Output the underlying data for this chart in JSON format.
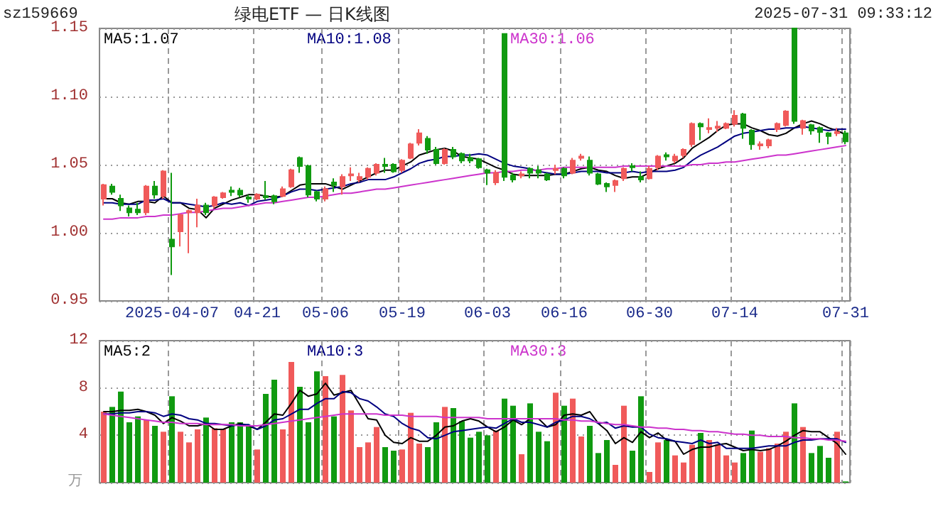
{
  "chart_data": [
    {
      "type": "candlestick",
      "title": "绿电ETF — 日K线图",
      "subtitle": "sz159669",
      "annotations": [
        "2025-07-31 09:33:12"
      ],
      "legend": "top",
      "grid": true,
      "categories": [
        null,
        null,
        null,
        null,
        null,
        null,
        null,
        null,
        "2025-04-07",
        null,
        null,
        null,
        null,
        null,
        null,
        null,
        null,
        null,
        "04-21",
        null,
        null,
        null,
        null,
        null,
        null,
        null,
        "05-06",
        null,
        null,
        null,
        null,
        null,
        null,
        null,
        null,
        "05-19",
        null,
        null,
        null,
        null,
        null,
        null,
        null,
        null,
        null,
        "06-03",
        null,
        null,
        null,
        null,
        null,
        null,
        null,
        null,
        "06-16",
        null,
        null,
        null,
        null,
        null,
        null,
        null,
        null,
        null,
        "06-30",
        null,
        null,
        null,
        null,
        null,
        null,
        null,
        null,
        null,
        "07-14",
        null,
        null,
        null,
        null,
        null,
        null,
        null,
        null,
        null,
        null,
        null,
        null,
        "07-31"
      ],
      "ohlc": [
        [
          1.025,
          1.036,
          1.02,
          1.035
        ],
        [
          1.034,
          1.036,
          1.028,
          1.03
        ],
        [
          1.025,
          1.028,
          1.016,
          1.02
        ],
        [
          1.018,
          1.02,
          1.012,
          1.015
        ],
        [
          1.017,
          1.022,
          1.013,
          1.015
        ],
        [
          1.015,
          1.035,
          1.013,
          1.034
        ],
        [
          1.034,
          1.038,
          1.025,
          1.028
        ],
        [
          1.027,
          1.046,
          1.025,
          1.045
        ],
        [
          0.995,
          1.044,
          0.969,
          0.99
        ],
        [
          1.001,
          1.014,
          0.99,
          1.013
        ],
        [
          1.015,
          1.017,
          0.985,
          1.016
        ],
        [
          1.015,
          1.025,
          1.004,
          1.02
        ],
        [
          1.02,
          1.022,
          1.013,
          1.015
        ],
        [
          1.02,
          1.027,
          1.018,
          1.026
        ],
        [
          1.026,
          1.03,
          1.025,
          1.029
        ],
        [
          1.031,
          1.034,
          1.027,
          1.03
        ],
        [
          1.031,
          1.033,
          1.026,
          1.028
        ],
        [
          1.026,
          1.028,
          1.022,
          1.025
        ],
        [
          1.025,
          1.029,
          1.024,
          1.028
        ],
        [
          1.027,
          1.038,
          1.024,
          1.026
        ],
        [
          1.027,
          1.028,
          1.021,
          1.023
        ],
        [
          1.027,
          1.034,
          1.026,
          1.032
        ],
        [
          1.034,
          1.047,
          1.033,
          1.046
        ],
        [
          1.055,
          1.056,
          1.044,
          1.049
        ],
        [
          1.049,
          1.05,
          1.026,
          1.028
        ],
        [
          1.03,
          1.031,
          1.023,
          1.025
        ],
        [
          1.025,
          1.034,
          1.023,
          1.032
        ],
        [
          1.037,
          1.04,
          1.03,
          1.035
        ],
        [
          1.034,
          1.043,
          1.028,
          1.041
        ],
        [
          1.042,
          1.048,
          1.038,
          1.043
        ],
        [
          1.039,
          1.044,
          1.037,
          1.041
        ],
        [
          1.041,
          1.048,
          1.039,
          1.047
        ],
        [
          1.044,
          1.051,
          1.042,
          1.05
        ],
        [
          1.05,
          1.055,
          1.044,
          1.049
        ],
        [
          1.05,
          1.051,
          1.044,
          1.045
        ],
        [
          1.046,
          1.054,
          1.044,
          1.053
        ],
        [
          1.055,
          1.066,
          1.054,
          1.065
        ],
        [
          1.066,
          1.076,
          1.064,
          1.073
        ],
        [
          1.069,
          1.071,
          1.058,
          1.061
        ],
        [
          1.061,
          1.063,
          1.05,
          1.051
        ],
        [
          1.051,
          1.062,
          1.05,
          1.061
        ],
        [
          1.061,
          1.063,
          1.054,
          1.056
        ],
        [
          1.058,
          1.059,
          1.051,
          1.053
        ],
        [
          1.055,
          1.058,
          1.051,
          1.053
        ],
        [
          1.054,
          1.055,
          1.047,
          1.048
        ],
        [
          1.046,
          1.047,
          1.035,
          1.044
        ],
        [
          1.037,
          1.046,
          1.035,
          1.044
        ],
        [
          1.146,
          1.146,
          1.038,
          1.041
        ],
        [
          1.042,
          1.044,
          1.037,
          1.039
        ],
        [
          1.042,
          1.045,
          1.04,
          1.043
        ],
        [
          1.047,
          1.048,
          1.04,
          1.044
        ],
        [
          1.046,
          1.049,
          1.04,
          1.044
        ],
        [
          1.043,
          1.044,
          1.038,
          1.039
        ],
        [
          1.046,
          1.05,
          1.043,
          1.047
        ],
        [
          1.047,
          1.048,
          1.04,
          1.042
        ],
        [
          1.044,
          1.055,
          1.043,
          1.053
        ],
        [
          1.055,
          1.058,
          1.053,
          1.056
        ],
        [
          1.053,
          1.056,
          1.042,
          1.044
        ],
        [
          1.043,
          1.044,
          1.035,
          1.036
        ],
        [
          1.036,
          1.037,
          1.03,
          1.034
        ],
        [
          1.035,
          1.039,
          1.03,
          1.038
        ],
        [
          1.04,
          1.048,
          1.038,
          1.047
        ],
        [
          1.049,
          1.051,
          1.045,
          1.048
        ],
        [
          1.041,
          1.045,
          1.037,
          1.039
        ],
        [
          1.04,
          1.049,
          1.039,
          1.047
        ],
        [
          1.048,
          1.057,
          1.046,
          1.056
        ],
        [
          1.057,
          1.059,
          1.053,
          1.056
        ],
        [
          1.053,
          1.058,
          1.051,
          1.056
        ],
        [
          1.057,
          1.062,
          1.055,
          1.061
        ],
        [
          1.065,
          1.081,
          1.063,
          1.08
        ],
        [
          1.08,
          1.081,
          1.068,
          1.078
        ],
        [
          1.076,
          1.084,
          1.073,
          1.077
        ],
        [
          1.077,
          1.082,
          1.074,
          1.078
        ],
        [
          1.077,
          1.081,
          1.076,
          1.08
        ],
        [
          1.08,
          1.09,
          1.078,
          1.086
        ],
        [
          1.087,
          1.088,
          1.069,
          1.077
        ],
        [
          1.075,
          1.076,
          1.061,
          1.065
        ],
        [
          1.064,
          1.067,
          1.061,
          1.065
        ],
        [
          1.064,
          1.069,
          1.062,
          1.068
        ],
        [
          1.076,
          1.081,
          1.074,
          1.08
        ],
        [
          1.079,
          1.09,
          1.078,
          1.089
        ],
        [
          1.15,
          1.15,
          1.08,
          1.082
        ],
        [
          1.077,
          1.083,
          1.072,
          1.082
        ],
        [
          1.079,
          1.08,
          1.072,
          1.075
        ],
        [
          1.077,
          1.078,
          1.066,
          1.074
        ],
        [
          1.073,
          1.074,
          1.065,
          1.071
        ],
        [
          1.073,
          1.077,
          1.071,
          1.074
        ],
        [
          1.073,
          1.075,
          1.065,
          1.067
        ]
      ],
      "colors": [
        "#f05a5a",
        "#109a10",
        "#109a10",
        "#109a10",
        "#109a10",
        "#f05a5a",
        "#109a10",
        "#f05a5a",
        "#109a10",
        "#f05a5a",
        "#f05a5a",
        "#f05a5a",
        "#109a10",
        "#f05a5a",
        "#f05a5a",
        "#109a10",
        "#109a10",
        "#109a10",
        "#f05a5a",
        "#109a10",
        "#109a10",
        "#f05a5a",
        "#f05a5a",
        "#109a10",
        "#109a10",
        "#109a10",
        "#f05a5a",
        "#109a10",
        "#f05a5a",
        "#f05a5a",
        "#f05a5a",
        "#f05a5a",
        "#f05a5a",
        "#109a10",
        "#109a10",
        "#f05a5a",
        "#f05a5a",
        "#f05a5a",
        "#109a10",
        "#109a10",
        "#f05a5a",
        "#109a10",
        "#109a10",
        "#109a10",
        "#109a10",
        "#109a10",
        "#f05a5a",
        "#109a10",
        "#109a10",
        "#f05a5a",
        "#109a10",
        "#109a10",
        "#109a10",
        "#f05a5a",
        "#109a10",
        "#f05a5a",
        "#f05a5a",
        "#109a10",
        "#109a10",
        "#109a10",
        "#f05a5a",
        "#f05a5a",
        "#109a10",
        "#109a10",
        "#f05a5a",
        "#f05a5a",
        "#109a10",
        "#f05a5a",
        "#f05a5a",
        "#f05a5a",
        "#109a10",
        "#f05a5a",
        "#f05a5a",
        "#f05a5a",
        "#f05a5a",
        "#109a10",
        "#109a10",
        "#f05a5a",
        "#f05a5a",
        "#f05a5a",
        "#f05a5a",
        "#109a10",
        "#f05a5a",
        "#109a10",
        "#109a10",
        "#109a10",
        "#f05a5a",
        "#109a10"
      ],
      "series": [
        {
          "type": "line",
          "name": "MA5:1.07",
          "color": "#000000",
          "values": [
            1.025,
            1.025,
            1.022,
            1.021,
            1.023,
            1.023,
            1.022,
            1.027,
            1.022,
            1.022,
            1.018,
            1.017,
            1.011,
            1.018,
            1.021,
            1.024,
            1.026,
            1.028,
            1.028,
            1.027,
            1.026,
            1.027,
            1.031,
            1.035,
            1.036,
            1.036,
            1.036,
            1.034,
            1.032,
            1.035,
            1.038,
            1.041,
            1.044,
            1.046,
            1.046,
            1.049,
            1.052,
            1.057,
            1.059,
            1.061,
            1.062,
            1.06,
            1.056,
            1.055,
            1.054,
            1.051,
            1.048,
            1.046,
            1.043,
            1.042,
            1.042,
            1.042,
            1.042,
            1.043,
            1.043,
            1.045,
            1.047,
            1.048,
            1.046,
            1.045,
            1.042,
            1.04,
            1.041,
            1.041,
            1.044,
            1.047,
            1.049,
            1.051,
            1.055,
            1.062,
            1.066,
            1.07,
            1.075,
            1.079,
            1.08,
            1.08,
            1.077,
            1.075,
            1.072,
            1.071,
            1.073,
            1.077,
            1.08,
            1.082,
            1.08,
            1.077,
            1.075,
            1.072
          ]
        },
        {
          "type": "line",
          "name": "MA10:1.08",
          "color": "#000080",
          "values": [
            1.022,
            1.022,
            1.021,
            1.021,
            1.021,
            1.024,
            1.024,
            1.025,
            1.022,
            1.022,
            1.021,
            1.02,
            1.019,
            1.02,
            1.022,
            1.021,
            1.022,
            1.02,
            1.023,
            1.024,
            1.025,
            1.027,
            1.03,
            1.032,
            1.032,
            1.031,
            1.032,
            1.033,
            1.034,
            1.036,
            1.037,
            1.039,
            1.039,
            1.039,
            1.041,
            1.044,
            1.047,
            1.051,
            1.053,
            1.054,
            1.056,
            1.056,
            1.057,
            1.057,
            1.058,
            1.057,
            1.054,
            1.051,
            1.049,
            1.048,
            1.047,
            1.045,
            1.044,
            1.043,
            1.043,
            1.044,
            1.045,
            1.045,
            1.045,
            1.044,
            1.044,
            1.044,
            1.045,
            1.044,
            1.045,
            1.045,
            1.045,
            1.046,
            1.048,
            1.053,
            1.057,
            1.06,
            1.063,
            1.067,
            1.071,
            1.073,
            1.074,
            1.075,
            1.076,
            1.076,
            1.077,
            1.077,
            1.078,
            1.077,
            1.076,
            1.075,
            1.076,
            1.076
          ]
        },
        {
          "type": "line",
          "name": "MA30:1.06",
          "color": "#cc33cc",
          "values": [
            1.01,
            1.01,
            1.011,
            1.011,
            1.011,
            1.012,
            1.012,
            1.013,
            1.013,
            1.014,
            1.015,
            1.015,
            1.016,
            1.017,
            1.018,
            1.018,
            1.019,
            1.02,
            1.021,
            1.022,
            1.022,
            1.023,
            1.024,
            1.025,
            1.026,
            1.026,
            1.027,
            1.028,
            1.029,
            1.029,
            1.03,
            1.031,
            1.032,
            1.032,
            1.033,
            1.034,
            1.035,
            1.036,
            1.037,
            1.038,
            1.039,
            1.04,
            1.041,
            1.042,
            1.043,
            1.044,
            1.044,
            1.045,
            1.045,
            1.046,
            1.046,
            1.046,
            1.047,
            1.047,
            1.048,
            1.048,
            1.048,
            1.048,
            1.048,
            1.048,
            1.048,
            1.049,
            1.049,
            1.049,
            1.049,
            1.049,
            1.049,
            1.049,
            1.049,
            1.05,
            1.05,
            1.051,
            1.051,
            1.052,
            1.052,
            1.053,
            1.054,
            1.055,
            1.056,
            1.057,
            1.057,
            1.058,
            1.059,
            1.06,
            1.061,
            1.062,
            1.063,
            1.064
          ]
        }
      ],
      "ylim": [
        0.95,
        1.15
      ],
      "yticks": [
        0.95,
        {
          "value": 1.0,
          "label": "1.00"
        },
        1.05,
        {
          "value": 1.1,
          "label": "1.10"
        },
        1.15
      ]
    },
    {
      "type": "bar",
      "legend": "top",
      "grid": true,
      "tick_labels": "y",
      "ylabel": "万",
      "categories": [
        null,
        null,
        null,
        null,
        null,
        null,
        null,
        null,
        null,
        null,
        null,
        null,
        null,
        null,
        null,
        null,
        null,
        null,
        null,
        null,
        null,
        null,
        null,
        null,
        null,
        null,
        null,
        null,
        null,
        null,
        null,
        null,
        null,
        null,
        null,
        null,
        null,
        null,
        null,
        null,
        null,
        null,
        null,
        null,
        null,
        null,
        null,
        null,
        null,
        null,
        null,
        null,
        null,
        null,
        null,
        null,
        null,
        null,
        null,
        null,
        null,
        null,
        null,
        null,
        null,
        null,
        null,
        null,
        null,
        null,
        null,
        null,
        null,
        null,
        null,
        null,
        null,
        null,
        null,
        null,
        null,
        null,
        null,
        null,
        null,
        null,
        null,
        null
      ],
      "series": [
        {
          "type": "bar",
          "values": [
            6.0,
            6.4,
            7.7,
            5.1,
            5.6,
            5.3,
            4.8,
            4.3,
            7.3,
            4.3,
            3.4,
            4.5,
            5.5,
            4.6,
            4.5,
            5.1,
            5.1,
            4.8,
            2.8,
            7.5,
            8.7,
            4.5,
            10.2,
            8.1,
            5.1,
            9.4,
            9.0,
            5.6,
            9.1,
            6.1,
            3.0,
            3.4,
            4.7,
            3.0,
            2.7,
            2.8,
            5.9,
            3.3,
            3.0,
            5.1,
            6.4,
            6.3,
            5.2,
            3.8,
            4.3,
            4.0,
            4.4,
            7.1,
            6.5,
            2.4,
            6.7,
            4.3,
            3.5,
            7.6,
            6.5,
            7.1,
            3.9,
            4.8,
            2.5,
            3.6,
            1.5,
            6.5,
            2.7,
            7.3,
            0.9,
            3.4,
            3.6,
            2.3,
            1.7,
            3.2,
            4.2,
            3.6,
            3.2,
            2.3,
            1.7,
            2.5,
            4.4,
            2.6,
            2.9,
            3.3,
            4.3,
            6.7,
            4.7,
            2.5,
            3.1,
            2.1,
            4.3,
            0.1
          ],
          "colors": [
            "#f05a5a",
            "#109a10",
            "#109a10",
            "#109a10",
            "#109a10",
            "#f05a5a",
            "#109a10",
            "#f05a5a",
            "#109a10",
            "#f05a5a",
            "#f05a5a",
            "#f05a5a",
            "#109a10",
            "#f05a5a",
            "#f05a5a",
            "#109a10",
            "#109a10",
            "#109a10",
            "#f05a5a",
            "#109a10",
            "#109a10",
            "#f05a5a",
            "#f05a5a",
            "#109a10",
            "#109a10",
            "#109a10",
            "#f05a5a",
            "#109a10",
            "#f05a5a",
            "#f05a5a",
            "#f05a5a",
            "#f05a5a",
            "#f05a5a",
            "#109a10",
            "#109a10",
            "#f05a5a",
            "#f05a5a",
            "#f05a5a",
            "#109a10",
            "#109a10",
            "#f05a5a",
            "#109a10",
            "#109a10",
            "#109a10",
            "#109a10",
            "#109a10",
            "#f05a5a",
            "#109a10",
            "#109a10",
            "#f05a5a",
            "#109a10",
            "#109a10",
            "#109a10",
            "#f05a5a",
            "#109a10",
            "#f05a5a",
            "#f05a5a",
            "#109a10",
            "#109a10",
            "#109a10",
            "#f05a5a",
            "#f05a5a",
            "#109a10",
            "#109a10",
            "#f05a5a",
            "#f05a5a",
            "#109a10",
            "#f05a5a",
            "#f05a5a",
            "#f05a5a",
            "#109a10",
            "#f05a5a",
            "#f05a5a",
            "#f05a5a",
            "#f05a5a",
            "#109a10",
            "#109a10",
            "#f05a5a",
            "#f05a5a",
            "#f05a5a",
            "#f05a5a",
            "#109a10",
            "#f05a5a",
            "#109a10",
            "#109a10",
            "#109a10",
            "#f05a5a",
            "#109a10"
          ]
        },
        {
          "type": "line",
          "name": "MA5:2",
          "color": "#000000",
          "values": [
            6.0,
            6.0,
            6.1,
            6.1,
            6.2,
            6.0,
            5.7,
            5.0,
            5.5,
            5.2,
            4.8,
            4.8,
            5.0,
            4.5,
            4.5,
            4.8,
            5.0,
            4.8,
            4.5,
            5.1,
            5.8,
            5.7,
            6.7,
            7.8,
            7.3,
            7.5,
            8.4,
            7.4,
            7.6,
            7.8,
            6.6,
            5.4,
            5.3,
            4.0,
            3.4,
            3.3,
            3.8,
            3.5,
            3.5,
            4.0,
            4.7,
            4.8,
            5.2,
            5.4,
            5.2,
            4.7,
            4.3,
            4.7,
            5.3,
            4.9,
            5.4,
            5.4,
            4.7,
            4.9,
            5.7,
            5.8,
            5.7,
            6.0,
            5.0,
            4.4,
            3.3,
            3.8,
            3.4,
            4.3,
            3.8,
            4.2,
            3.6,
            3.5,
            2.4,
            2.8,
            3.0,
            3.0,
            3.2,
            3.3,
            3.0,
            2.7,
            2.8,
            2.7,
            2.8,
            3.1,
            3.5,
            4.0,
            4.4,
            4.3,
            4.3,
            3.8,
            3.3,
            2.4
          ]
        },
        {
          "type": "line",
          "name": "MA10:3",
          "color": "#000080",
          "values": [
            5.8,
            5.8,
            5.9,
            5.9,
            6.0,
            6.0,
            5.9,
            5.6,
            5.8,
            5.7,
            5.4,
            5.3,
            5.0,
            5.0,
            4.9,
            4.8,
            4.9,
            4.9,
            4.5,
            4.8,
            5.3,
            5.4,
            5.8,
            6.2,
            6.2,
            6.7,
            7.1,
            7.1,
            7.7,
            7.6,
            7.1,
            6.9,
            6.4,
            5.8,
            5.6,
            5.0,
            4.6,
            4.4,
            3.8,
            3.7,
            4.0,
            4.3,
            4.4,
            4.5,
            4.6,
            4.7,
            4.6,
            5.0,
            5.4,
            5.1,
            5.1,
            4.9,
            4.7,
            5.1,
            5.3,
            5.6,
            5.6,
            5.4,
            5.0,
            5.1,
            4.6,
            4.8,
            4.7,
            4.7,
            4.1,
            3.8,
            3.7,
            3.5,
            3.4,
            3.3,
            3.6,
            3.3,
            3.4,
            2.9,
            2.9,
            2.9,
            2.9,
            3.0,
            3.1,
            3.1,
            3.1,
            3.4,
            3.6,
            3.6,
            3.7,
            3.7,
            3.7,
            3.4
          ]
        },
        {
          "type": "line",
          "name": "MA30:3",
          "color": "#cc33cc",
          "values": [
            5.8,
            5.7,
            5.6,
            5.5,
            5.4,
            5.3,
            5.2,
            5.1,
            5.1,
            5.0,
            5.0,
            5.0,
            4.9,
            4.9,
            4.9,
            4.9,
            4.8,
            4.8,
            4.8,
            4.9,
            5.0,
            5.1,
            5.2,
            5.3,
            5.4,
            5.5,
            5.6,
            5.7,
            5.8,
            5.8,
            5.8,
            5.8,
            5.8,
            5.7,
            5.7,
            5.7,
            5.6,
            5.6,
            5.6,
            5.6,
            5.5,
            5.5,
            5.5,
            5.5,
            5.5,
            5.4,
            5.4,
            5.4,
            5.4,
            5.4,
            5.4,
            5.4,
            5.4,
            5.4,
            5.3,
            5.3,
            5.2,
            5.2,
            5.1,
            5.0,
            4.9,
            4.9,
            4.8,
            4.7,
            4.7,
            4.6,
            4.6,
            4.5,
            4.5,
            4.4,
            4.4,
            4.3,
            4.3,
            4.2,
            4.1,
            4.1,
            4.0,
            4.0,
            3.9,
            3.9,
            3.9,
            3.8,
            3.8,
            3.7,
            3.7,
            3.6,
            3.6,
            3.5
          ]
        }
      ],
      "ylim": [
        0,
        12
      ],
      "yticks": [
        {
          "value": 0,
          "label": null
        },
        4,
        8,
        12
      ]
    }
  ]
}
